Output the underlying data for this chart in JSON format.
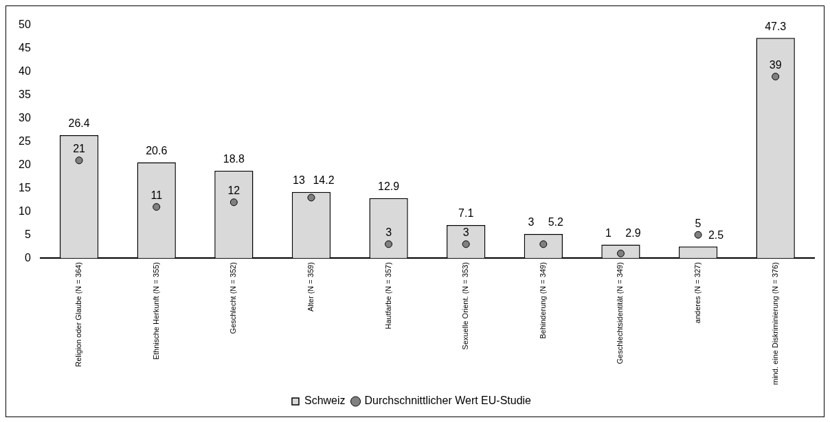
{
  "chart_data": {
    "type": "bar",
    "categories": [
      "Religion oder Glaube (N = 364)",
      "Ethnische Herkunft (N = 355)",
      "Geschlecht (N = 352)",
      "Alter (N = 359)",
      "Hautfarbe (N = 357)",
      "Sexuelle Orient. (N = 353)",
      "Behinderung (N = 349)",
      "Geschlechtsidentität (N = 349)",
      "anderes (N = 327)",
      "mind. eine Diskriminierung (N = 376)"
    ],
    "series": [
      {
        "name": "Schweiz",
        "color": "#d9d9d9",
        "values": [
          26.4,
          20.6,
          18.8,
          14.2,
          12.9,
          7.1,
          5.2,
          2.9,
          2.5,
          47.3
        ]
      },
      {
        "name": "Durchschnittlicher Wert EU-Studie",
        "type": "scatter",
        "color": "#808080",
        "marker": "circle",
        "x": [
          "Religion oder Glaube (N = 364)",
          "Ethnische Herkunft (N = 355)",
          "Geschlecht (N = 352)",
          "Alter (N = 359)",
          "Hautfarbe (N = 357)",
          "Sexuelle Orient. (N = 353)",
          "Behinderung (N = 349)",
          "Geschlechtsidentität (N = 349)",
          "anderes (N = 327)",
          "mind. eine Diskriminierung (N = 376)"
        ],
        "values": [
          21,
          11,
          12,
          13,
          3,
          3,
          3,
          1,
          5,
          39
        ]
      }
    ],
    "ylim": [
      0,
      50
    ],
    "yticks": [
      0,
      5,
      10,
      15,
      20,
      25,
      30,
      35,
      40,
      45,
      50
    ],
    "grid": false,
    "legend": "bottom",
    "data_labels": true
  }
}
